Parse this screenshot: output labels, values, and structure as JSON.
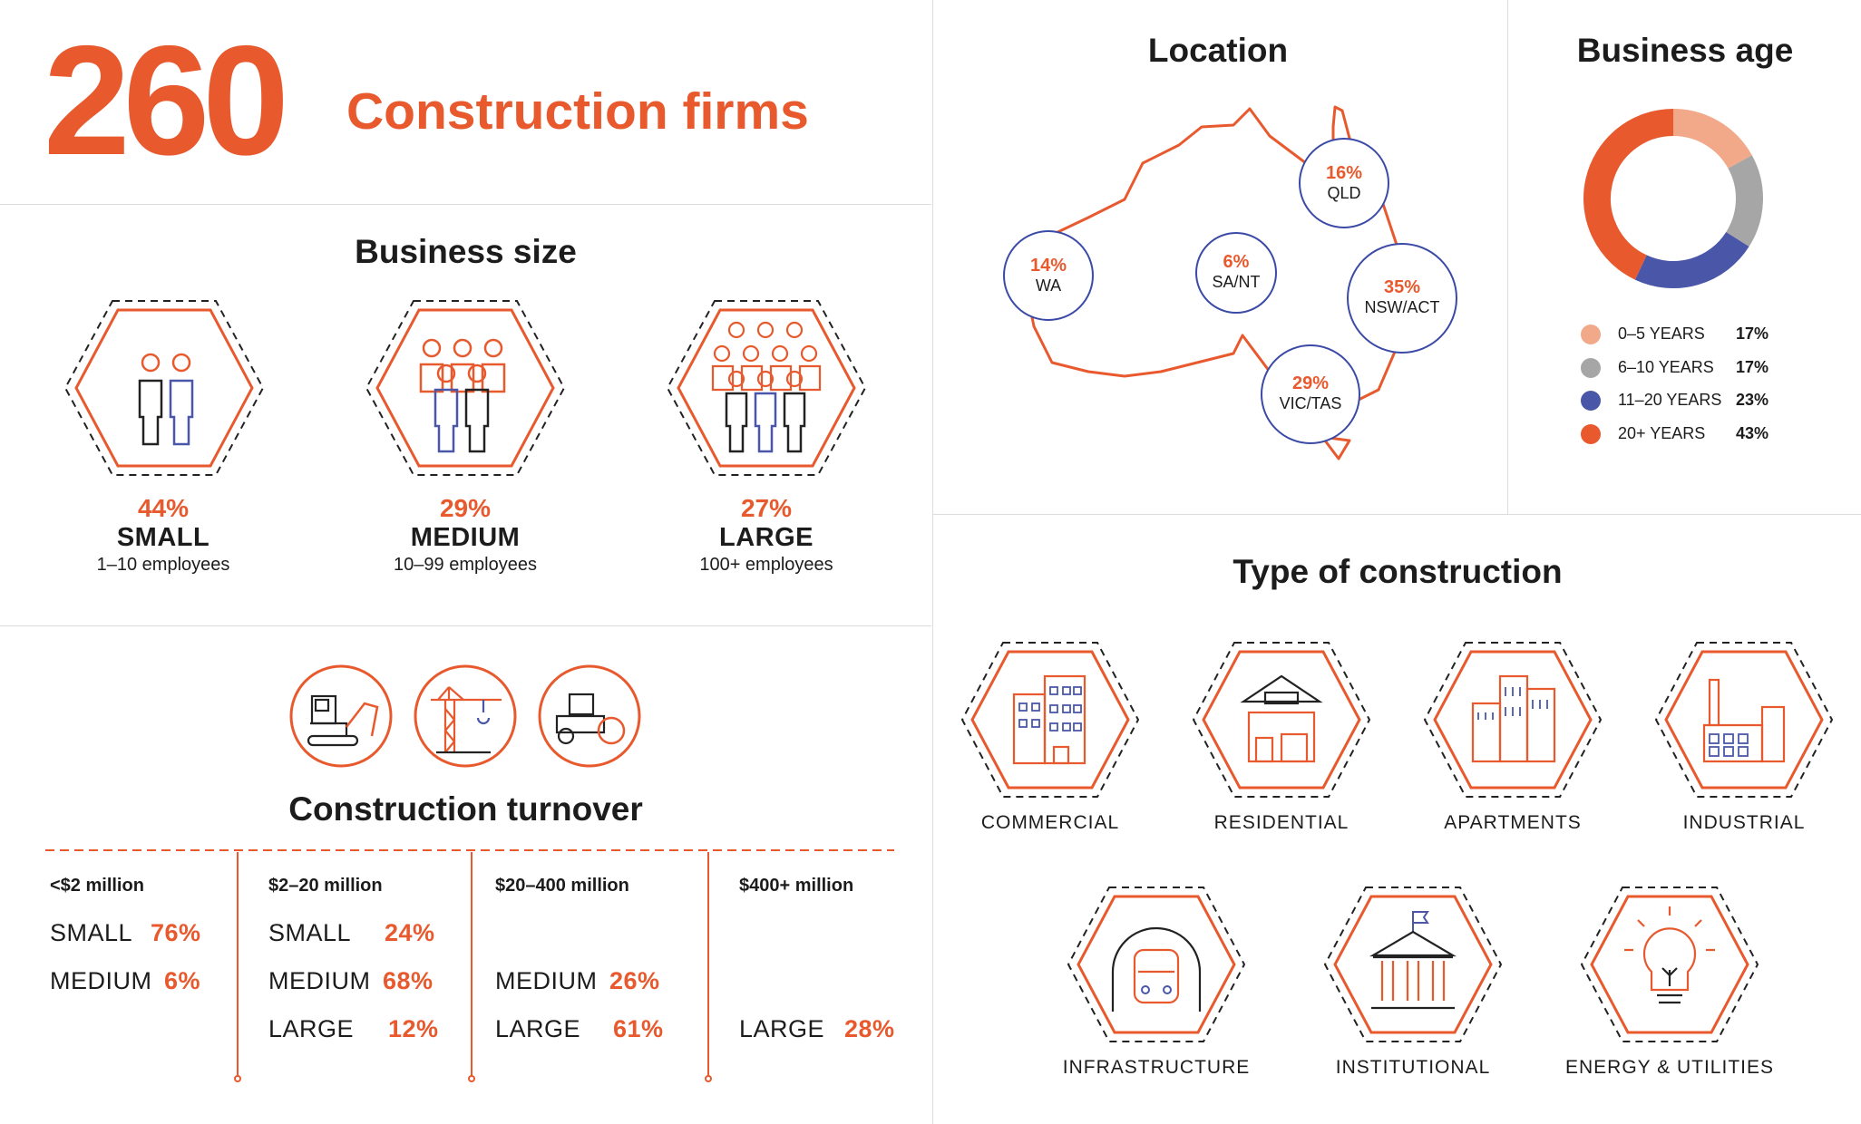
{
  "header": {
    "count": "260",
    "label": "Construction firms"
  },
  "business_size": {
    "title": "Business size",
    "items": [
      {
        "pct": "44%",
        "name": "SMALL",
        "sub": "1–10 employees",
        "icon": "small-team-icon"
      },
      {
        "pct": "29%",
        "name": "MEDIUM",
        "sub": "10–99 employees",
        "icon": "medium-team-icon"
      },
      {
        "pct": "27%",
        "name": "LARGE",
        "sub": "100+ employees",
        "icon": "large-team-icon"
      }
    ]
  },
  "turnover": {
    "title": "Construction turnover",
    "icons": [
      "excavator-icon",
      "crane-icon",
      "road-roller-icon"
    ],
    "columns": [
      {
        "head": "<$2 million",
        "rows": [
          {
            "label": "SMALL",
            "pct": "76%"
          },
          {
            "label": "MEDIUM",
            "pct": "6%"
          }
        ]
      },
      {
        "head": "$2–20 million",
        "rows": [
          {
            "label": "SMALL",
            "pct": "24%"
          },
          {
            "label": "MEDIUM",
            "pct": "68%"
          },
          {
            "label": "LARGE",
            "pct": "12%"
          }
        ]
      },
      {
        "head": "$20–400 million",
        "rows": [
          {
            "label": "MEDIUM",
            "pct": "26%"
          },
          {
            "label": "LARGE",
            "pct": "61%"
          }
        ]
      },
      {
        "head": "$400+ million",
        "rows": [
          {
            "label": "LARGE",
            "pct": "28%"
          }
        ]
      }
    ]
  },
  "location": {
    "title": "Location",
    "regions": [
      {
        "pct": "14%",
        "name": "WA"
      },
      {
        "pct": "6%",
        "name": "SA/NT"
      },
      {
        "pct": "16%",
        "name": "QLD"
      },
      {
        "pct": "35%",
        "name": "NSW/ACT"
      },
      {
        "pct": "29%",
        "name": "VIC/TAS"
      }
    ]
  },
  "business_age": {
    "title": "Business age",
    "segments": [
      {
        "label": "0–5 YEARS",
        "pct": "17%",
        "value": 17,
        "color": "#F2A98A"
      },
      {
        "label": "6–10 YEARS",
        "pct": "17%",
        "value": 17,
        "color": "#A6A6A6"
      },
      {
        "label": "11–20 YEARS",
        "pct": "23%",
        "value": 23,
        "color": "#4A57A8"
      },
      {
        "label": "20+ YEARS",
        "pct": "43%",
        "value": 43,
        "color": "#E85A2E"
      }
    ]
  },
  "construction_type": {
    "title": "Type of construction",
    "items": [
      {
        "label": "COMMERCIAL",
        "icon": "office-building-icon"
      },
      {
        "label": "RESIDENTIAL",
        "icon": "house-icon"
      },
      {
        "label": "APARTMENTS",
        "icon": "apartments-icon"
      },
      {
        "label": "INDUSTRIAL",
        "icon": "factory-icon"
      },
      {
        "label": "INFRASTRUCTURE",
        "icon": "train-tunnel-icon"
      },
      {
        "label": "INSTITUTIONAL",
        "icon": "institution-building-icon"
      },
      {
        "label": "ENERGY & UTILITIES",
        "icon": "light-bulb-icon"
      }
    ]
  },
  "colors": {
    "accent": "#E85A2E",
    "blue": "#4A57A8",
    "dark": "#1c1c1c"
  }
}
